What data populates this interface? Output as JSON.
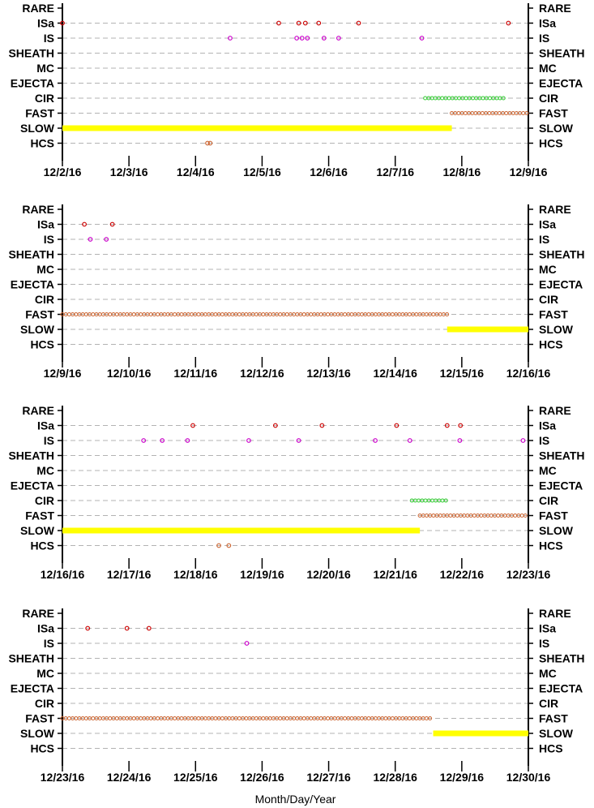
{
  "chart_data": [
    {
      "type": "scatter",
      "categories": [
        "RARE",
        "ISa",
        "IS",
        "SHEATH",
        "MC",
        "EJECTA",
        "CIR",
        "FAST",
        "SLOW",
        "HCS"
      ],
      "x_ticks": [
        "12/2/16",
        "12/3/16",
        "12/4/16",
        "12/5/16",
        "12/6/16",
        "12/7/16",
        "12/8/16",
        "12/9/16"
      ],
      "xlim": [
        0,
        7
      ],
      "grid": true,
      "series": [
        {
          "category": "ISa",
          "color": "#cc0000",
          "style": "circle",
          "points": [
            0.0,
            3.25,
            3.55,
            3.65,
            3.85,
            4.45,
            6.7
          ]
        },
        {
          "category": "IS",
          "color": "#cc00cc",
          "style": "circle",
          "points": [
            2.52,
            3.52,
            3.6,
            3.68,
            3.93,
            4.15,
            5.4
          ]
        },
        {
          "category": "CIR",
          "color": "#33cc33",
          "style": "run",
          "range": [
            5.45,
            6.67
          ]
        },
        {
          "category": "FAST",
          "color": "#cc6633",
          "style": "run",
          "range": [
            5.85,
            7.0
          ]
        },
        {
          "category": "SLOW",
          "color": "#ffff00",
          "style": "bar",
          "range": [
            0.0,
            5.85
          ]
        },
        {
          "category": "HCS",
          "color": "#cc6633",
          "style": "circle",
          "points": [
            2.18,
            2.22
          ]
        }
      ]
    },
    {
      "type": "scatter",
      "categories": [
        "RARE",
        "ISa",
        "IS",
        "SHEATH",
        "MC",
        "EJECTA",
        "CIR",
        "FAST",
        "SLOW",
        "HCS"
      ],
      "x_ticks": [
        "12/9/16",
        "12/10/16",
        "12/11/16",
        "12/12/16",
        "12/13/16",
        "12/14/16",
        "12/15/16",
        "12/16/16"
      ],
      "xlim": [
        0,
        7
      ],
      "grid": true,
      "series": [
        {
          "category": "ISa",
          "color": "#cc0000",
          "style": "circle",
          "points": [
            0.33,
            0.75
          ]
        },
        {
          "category": "IS",
          "color": "#cc00cc",
          "style": "circle",
          "points": [
            0.42,
            0.66
          ]
        },
        {
          "category": "FAST",
          "color": "#cc6633",
          "style": "run",
          "range": [
            0.0,
            5.78
          ]
        },
        {
          "category": "SLOW",
          "color": "#ffff00",
          "style": "bar",
          "range": [
            5.78,
            7.0
          ]
        }
      ]
    },
    {
      "type": "scatter",
      "categories": [
        "RARE",
        "ISa",
        "IS",
        "SHEATH",
        "MC",
        "EJECTA",
        "CIR",
        "FAST",
        "SLOW",
        "HCS"
      ],
      "x_ticks": [
        "12/16/16",
        "12/17/16",
        "12/18/16",
        "12/19/16",
        "12/20/16",
        "12/21/16",
        "12/22/16",
        "12/23/16"
      ],
      "xlim": [
        0,
        7
      ],
      "grid": true,
      "series": [
        {
          "category": "ISa",
          "color": "#cc0000",
          "style": "circle",
          "points": [
            1.96,
            3.2,
            3.9,
            5.02,
            5.78,
            5.98
          ]
        },
        {
          "category": "IS",
          "color": "#cc00cc",
          "style": "circle",
          "points": [
            1.22,
            1.5,
            1.88,
            2.8,
            3.55,
            4.7,
            5.22,
            5.97,
            6.92
          ]
        },
        {
          "category": "CIR",
          "color": "#33cc33",
          "style": "run",
          "range": [
            5.25,
            5.78
          ]
        },
        {
          "category": "FAST",
          "color": "#cc6633",
          "style": "run",
          "range": [
            5.37,
            7.0
          ]
        },
        {
          "category": "SLOW",
          "color": "#ffff00",
          "style": "bar",
          "range": [
            0.0,
            5.37
          ]
        },
        {
          "category": "HCS",
          "color": "#cc6633",
          "style": "circle",
          "points": [
            2.35,
            2.5
          ]
        }
      ]
    },
    {
      "type": "scatter",
      "categories": [
        "RARE",
        "ISa",
        "IS",
        "SHEATH",
        "MC",
        "EJECTA",
        "CIR",
        "FAST",
        "SLOW",
        "HCS"
      ],
      "x_ticks": [
        "12/23/16",
        "12/24/16",
        "12/25/16",
        "12/26/16",
        "12/27/16",
        "12/28/16",
        "12/29/16",
        "12/30/16"
      ],
      "xlim": [
        0,
        7
      ],
      "grid": true,
      "xlabel": "Month/Day/Year",
      "series": [
        {
          "category": "ISa",
          "color": "#cc0000",
          "style": "circle",
          "points": [
            0.38,
            0.97,
            1.3
          ]
        },
        {
          "category": "IS",
          "color": "#cc00cc",
          "style": "circle",
          "points": [
            2.77
          ]
        },
        {
          "category": "FAST",
          "color": "#cc6633",
          "style": "run",
          "range": [
            0.0,
            5.57
          ]
        },
        {
          "category": "SLOW",
          "color": "#ffff00",
          "style": "bar",
          "range": [
            5.57,
            7.0
          ]
        }
      ]
    }
  ]
}
